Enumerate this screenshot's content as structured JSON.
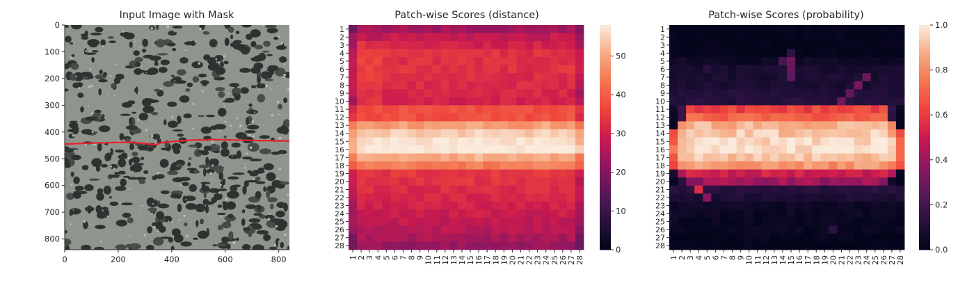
{
  "chart_data": [
    {
      "type": "image",
      "title": "Input Image with Mask",
      "xticks": [
        0,
        200,
        400,
        600,
        800
      ],
      "yticks": [
        0,
        100,
        200,
        300,
        400,
        500,
        600,
        700,
        800
      ],
      "xlim": [
        0,
        840
      ],
      "ylim": [
        0,
        840
      ],
      "mask_line": {
        "color": "#e8202a",
        "x": [
          0,
          80,
          160,
          240,
          300,
          340,
          360,
          420,
          480,
          560,
          640,
          720,
          800,
          840
        ],
        "y": [
          445,
          442,
          440,
          438,
          443,
          448,
          440,
          434,
          430,
          428,
          430,
          432,
          433,
          434
        ]
      }
    },
    {
      "type": "heatmap",
      "title": "Patch-wise Scores (distance)",
      "rows": [
        "1",
        "2",
        "3",
        "4",
        "5",
        "6",
        "7",
        "8",
        "9",
        "10",
        "11",
        "12",
        "13",
        "14",
        "15",
        "16",
        "17",
        "18",
        "19",
        "20",
        "21",
        "22",
        "23",
        "24",
        "25",
        "26",
        "27",
        "28"
      ],
      "cols": [
        "1",
        "2",
        "3",
        "4",
        "5",
        "6",
        "7",
        "8",
        "9",
        "10",
        "11",
        "12",
        "13",
        "14",
        "15",
        "16",
        "17",
        "18",
        "19",
        "20",
        "21",
        "22",
        "23",
        "24",
        "25",
        "26",
        "27",
        "28"
      ],
      "colorbar": {
        "ticks": [
          0,
          10,
          20,
          30,
          40,
          50
        ],
        "range": [
          0,
          58
        ]
      },
      "row_profile": [
        24,
        28,
        30,
        33,
        33,
        33,
        32,
        32,
        31,
        30,
        38,
        38,
        48,
        54,
        57,
        58,
        50,
        44,
        34,
        33,
        32,
        31,
        30,
        29,
        28,
        27,
        25,
        23
      ],
      "hot_cols": [
        5,
        6,
        14,
        15,
        22,
        23
      ],
      "edge_cols": [
        0,
        27
      ]
    },
    {
      "type": "heatmap",
      "title": "Patch-wise Scores (probability)",
      "rows": [
        "1",
        "2",
        "3",
        "4",
        "5",
        "6",
        "7",
        "8",
        "9",
        "10",
        "11",
        "12",
        "13",
        "14",
        "15",
        "16",
        "17",
        "18",
        "19",
        "20",
        "21",
        "22",
        "23",
        "24",
        "25",
        "26",
        "27",
        "28"
      ],
      "cols": [
        "1",
        "2",
        "3",
        "4",
        "5",
        "6",
        "7",
        "8",
        "9",
        "10",
        "11",
        "12",
        "13",
        "14",
        "15",
        "16",
        "17",
        "18",
        "19",
        "20",
        "21",
        "22",
        "23",
        "24",
        "25",
        "26",
        "27",
        "28"
      ],
      "colorbar": {
        "ticks": [
          "0.0",
          "0.2",
          "0.4",
          "0.6",
          "0.8",
          "1.0"
        ],
        "range": [
          0,
          1
        ]
      },
      "row_profile": [
        0.0,
        0.0,
        0.0,
        0.0,
        0.04,
        0.07,
        0.08,
        0.08,
        0.1,
        0.12,
        0.62,
        0.7,
        0.88,
        0.93,
        0.97,
        0.98,
        0.92,
        0.82,
        0.5,
        0.4,
        0.12,
        0.09,
        0.04,
        0.03,
        0.02,
        0.02,
        0.01,
        0.0
      ],
      "spots": [
        {
          "r": 3,
          "c": 14,
          "v": 0.14
        },
        {
          "r": 4,
          "c": 13,
          "v": 0.22
        },
        {
          "r": 4,
          "c": 14,
          "v": 0.3
        },
        {
          "r": 5,
          "c": 14,
          "v": 0.28
        },
        {
          "r": 6,
          "c": 14,
          "v": 0.25
        },
        {
          "r": 5,
          "c": 4,
          "v": 0.12
        },
        {
          "r": 6,
          "c": 23,
          "v": 0.3
        },
        {
          "r": 7,
          "c": 22,
          "v": 0.32
        },
        {
          "r": 8,
          "c": 21,
          "v": 0.28
        },
        {
          "r": 9,
          "c": 20,
          "v": 0.3
        },
        {
          "r": 20,
          "c": 3,
          "v": 0.55
        },
        {
          "r": 21,
          "c": 4,
          "v": 0.35
        },
        {
          "r": 25,
          "c": 19,
          "v": 0.14
        }
      ]
    }
  ]
}
